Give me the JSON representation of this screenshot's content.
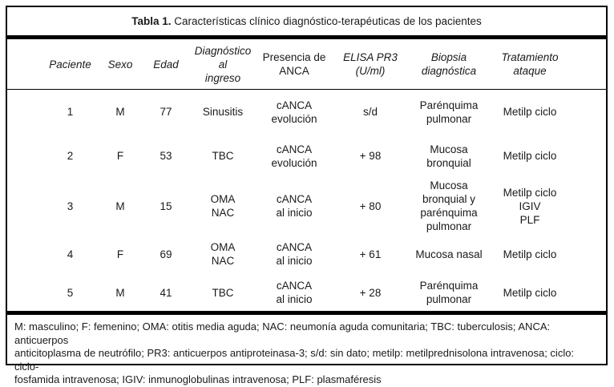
{
  "colors": {
    "border": "#000000",
    "text": "#1a1a1a",
    "background": "#ffffff"
  },
  "title": {
    "bold": "Tabla 1.",
    "rest": "Características clínico diagnóstico-terapéuticas de los pacientes"
  },
  "table": {
    "headers": [
      {
        "label": "Paciente"
      },
      {
        "label": "Sexo"
      },
      {
        "label": "Edad"
      },
      {
        "label": "Diagnóstico al\ningreso"
      },
      {
        "label": "Presencia de\nANCA"
      },
      {
        "label": "ELISA PR3\n(U/ml)"
      },
      {
        "label": "Biopsia\ndiagnóstica"
      },
      {
        "label": "Tratamiento\nataque"
      }
    ],
    "rows": [
      {
        "cells": [
          "1",
          "M",
          "77",
          "Sinusitis",
          "cANCA\nevolución",
          "s/d",
          "Parénquima\npulmonar",
          "Metilp ciclo"
        ]
      },
      {
        "cells": [
          "2",
          "F",
          "53",
          "TBC",
          "cANCA\nevolución",
          "+ 98",
          "Mucosa\nbronquial",
          "Metilp ciclo"
        ]
      },
      {
        "cells": [
          "3",
          "M",
          "15",
          "OMA\nNAC",
          "cANCA\nal inicio",
          "+ 80",
          "Mucosa\nbronquial y\nparénquima\npulmonar",
          "Metilp ciclo\nIGIV\nPLF"
        ]
      },
      {
        "cells": [
          "4",
          "F",
          "69",
          "OMA\nNAC",
          "cANCA\nal inicio",
          "+ 61",
          "Mucosa nasal",
          "Metilp ciclo"
        ]
      },
      {
        "cells": [
          "5",
          "M",
          "41",
          "TBC",
          "cANCA\nal inicio",
          "+ 28",
          "Parénquima\npulmonar",
          "Metilp ciclo"
        ]
      }
    ]
  },
  "footnote": {
    "lines": [
      "M: masculino; F: femenino; OMA: otitis media aguda; NAC: neumonía aguda comunitaria; TBC: tuberculosis; ANCA: anticuerpos",
      "anticitoplasma de neutrófilo; PR3: anticuerpos antiproteinasa-3; s/d: sin dato; metilp: metilprednisolona intravenosa; ciclo: ciclo-",
      "fosfamida intravenosa; IGIV: inmunoglobulinas intravenosa; PLF: plasmaféresis"
    ]
  }
}
